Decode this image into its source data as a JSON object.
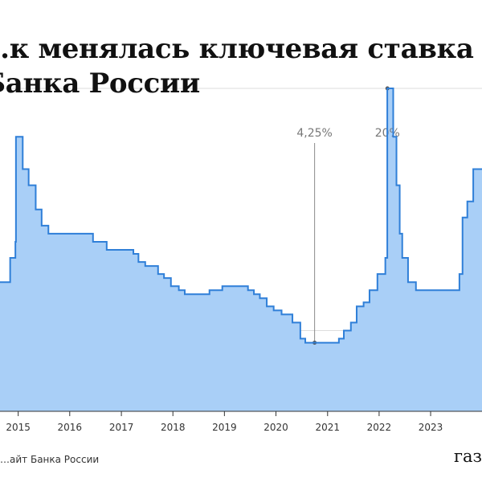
{
  "title": "…к менялась ключевая ставка\nБанка России",
  "source": "…айт Банка России",
  "logo": "газ…",
  "chart_data": {
    "type": "area",
    "title": "…к менялась ключевая ставка Банка России",
    "x_tick_labels": [
      "2015",
      "2016",
      "2017",
      "2018",
      "2019",
      "2020",
      "2021",
      "2022",
      "2023"
    ],
    "xlim": [
      "2014-08-25",
      "2023-12-31"
    ],
    "ylim": [
      0,
      20
    ],
    "y_gridlines": [
      5,
      20
    ],
    "grid": true,
    "legend": "none",
    "colors": {
      "line": "#2f7fd8",
      "fill": "#a9cff7",
      "grid": "#dddddd",
      "axis": "#333333",
      "annotation": "#777777"
    },
    "annotations": [
      {
        "x": "2020-10-01",
        "y": 4.25,
        "label": "4,25%"
      },
      {
        "x": "2022-03-01",
        "y": 20,
        "label": "20%"
      }
    ],
    "series": [
      {
        "type": "step",
        "points": [
          [
            "2014-08-25",
            8.0
          ],
          [
            "2014-11-05",
            9.5
          ],
          [
            "2014-12-12",
            10.5
          ],
          [
            "2014-12-16",
            17.0
          ],
          [
            "2015-02-02",
            15.0
          ],
          [
            "2015-03-16",
            14.0
          ],
          [
            "2015-05-05",
            12.5
          ],
          [
            "2015-06-16",
            11.5
          ],
          [
            "2015-08-03",
            11.0
          ],
          [
            "2016-06-14",
            10.5
          ],
          [
            "2016-09-19",
            10.0
          ],
          [
            "2017-03-27",
            9.75
          ],
          [
            "2017-05-02",
            9.25
          ],
          [
            "2017-06-19",
            9.0
          ],
          [
            "2017-09-18",
            8.5
          ],
          [
            "2017-10-30",
            8.25
          ],
          [
            "2017-12-18",
            7.75
          ],
          [
            "2018-02-12",
            7.5
          ],
          [
            "2018-03-26",
            7.25
          ],
          [
            "2018-09-17",
            7.5
          ],
          [
            "2018-12-17",
            7.75
          ],
          [
            "2019-06-17",
            7.5
          ],
          [
            "2019-07-29",
            7.25
          ],
          [
            "2019-09-09",
            7.0
          ],
          [
            "2019-10-28",
            6.5
          ],
          [
            "2019-12-16",
            6.25
          ],
          [
            "2020-02-10",
            6.0
          ],
          [
            "2020-04-27",
            5.5
          ],
          [
            "2020-06-22",
            4.5
          ],
          [
            "2020-07-27",
            4.25
          ],
          [
            "2021-03-22",
            4.5
          ],
          [
            "2021-04-26",
            5.0
          ],
          [
            "2021-06-15",
            5.5
          ],
          [
            "2021-07-26",
            6.5
          ],
          [
            "2021-09-13",
            6.75
          ],
          [
            "2021-10-25",
            7.5
          ],
          [
            "2021-12-20",
            8.5
          ],
          [
            "2022-02-14",
            9.5
          ],
          [
            "2022-02-28",
            20.0
          ],
          [
            "2022-04-11",
            17.0
          ],
          [
            "2022-05-04",
            14.0
          ],
          [
            "2022-05-27",
            11.0
          ],
          [
            "2022-06-14",
            9.5
          ],
          [
            "2022-07-25",
            8.0
          ],
          [
            "2022-09-19",
            7.5
          ],
          [
            "2023-07-24",
            8.5
          ],
          [
            "2023-08-15",
            12.0
          ],
          [
            "2023-09-18",
            13.0
          ],
          [
            "2023-10-30",
            15.0
          ],
          [
            "2023-12-31",
            15.0
          ]
        ]
      }
    ]
  }
}
